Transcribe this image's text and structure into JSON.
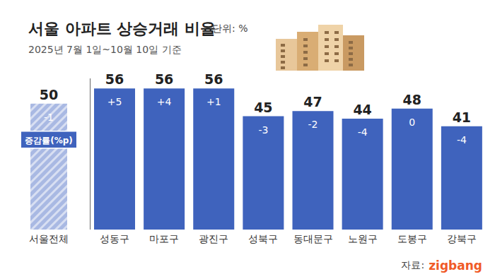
{
  "chart_data": {
    "type": "bar",
    "title": "서울 아파트 상승거래 비율",
    "unit": "단위: %",
    "subtitle": "2025년 7월 1일~10월 10일 기준",
    "categories": [
      "서울전체",
      "성동구",
      "마포구",
      "광진구",
      "성북구",
      "동대문구",
      "노원구",
      "도봉구",
      "강북구"
    ],
    "values": [
      50,
      56,
      56,
      56,
      45,
      47,
      44,
      48,
      41
    ],
    "colors": [
      "#a9b9e3",
      "#3f63bd",
      "#3f63bd",
      "#3f63bd",
      "#3f63bd",
      "#3f63bd",
      "#3f63bd",
      "#3f63bd",
      "#3f63bd"
    ],
    "data_labels": true,
    "tick_labels": "x",
    "ylim": [
      0,
      60
    ],
    "yticks": [
      0,
      60
    ],
    "changes": {
      "name": "증감률(%p)",
      "values": [
        -1,
        5,
        4,
        1,
        -3,
        -2,
        -4,
        0,
        -4
      ],
      "value_labels": [
        "-1",
        "+5",
        "+4",
        "+1",
        "-3",
        "-2",
        "-4",
        "0",
        "-4"
      ]
    },
    "source_label": "자료:",
    "source": "zigbang"
  }
}
